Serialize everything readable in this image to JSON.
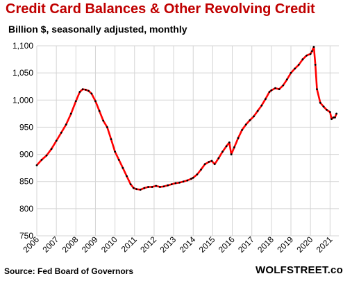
{
  "chart_data": {
    "type": "line",
    "title": "Credit Card Balances & Other Revolving Credit",
    "subtitle": "Billion $, seasonally adjusted, monthly",
    "source": "Source: Fed Board of Governors",
    "brand": "WOLFSTREET.com",
    "xlabel": "",
    "ylabel": "",
    "xlim": [
      2006,
      2021.45
    ],
    "ylim": [
      750,
      1100
    ],
    "x_ticks": [
      "2006",
      "2007",
      "2008",
      "2009",
      "2010",
      "2011",
      "2012",
      "2013",
      "2014",
      "2015",
      "2016",
      "2017",
      "2018",
      "2019",
      "2020",
      "2021"
    ],
    "y_ticks": [
      "750",
      "800",
      "850",
      "900",
      "950",
      "1,000",
      "1,050",
      "1,100"
    ],
    "grid": true,
    "legend": "none",
    "line_color": "#ff0000",
    "marker_color": "#000000",
    "series": [
      {
        "x": [
          2006.0,
          2006.25,
          2006.5,
          2006.75,
          2007.0,
          2007.25,
          2007.5,
          2007.75,
          2008.0,
          2008.2,
          2008.35,
          2008.5,
          2008.65,
          2008.8,
          2009.0,
          2009.2,
          2009.4,
          2009.6,
          2009.8,
          2010.0,
          2010.2,
          2010.4,
          2010.6,
          2010.8,
          2010.95,
          2011.1,
          2011.3,
          2011.5,
          2011.7,
          2011.9,
          2012.1,
          2012.3,
          2012.5,
          2012.7,
          2012.9,
          2013.1,
          2013.3,
          2013.5,
          2013.7,
          2013.9,
          2014.0,
          2014.2,
          2014.4,
          2014.6,
          2014.8,
          2014.95,
          2015.1,
          2015.3,
          2015.5,
          2015.7,
          2015.85,
          2015.95,
          2016.1,
          2016.3,
          2016.5,
          2016.7,
          2016.9,
          2017.1,
          2017.3,
          2017.5,
          2017.7,
          2017.9,
          2018.0,
          2018.2,
          2018.4,
          2018.6,
          2018.8,
          2019.0,
          2019.2,
          2019.4,
          2019.6,
          2019.8,
          2020.0,
          2020.08,
          2020.17,
          2020.25,
          2020.33,
          2020.5,
          2020.67,
          2020.83,
          2021.0,
          2021.08,
          2021.17,
          2021.25,
          2021.33
        ],
        "values": [
          880,
          890,
          898,
          910,
          925,
          940,
          955,
          975,
          998,
          1015,
          1020,
          1019,
          1017,
          1012,
          998,
          980,
          962,
          950,
          928,
          905,
          890,
          875,
          860,
          845,
          838,
          836,
          835,
          838,
          840,
          840,
          842,
          840,
          841,
          843,
          845,
          847,
          848,
          850,
          852,
          855,
          857,
          863,
          872,
          882,
          886,
          888,
          882,
          893,
          905,
          915,
          922,
          900,
          913,
          930,
          945,
          955,
          963,
          970,
          980,
          990,
          1002,
          1015,
          1018,
          1022,
          1020,
          1027,
          1038,
          1050,
          1058,
          1065,
          1075,
          1082,
          1085,
          1090,
          1098,
          1065,
          1020,
          995,
          988,
          982,
          978,
          965,
          968,
          968,
          975
        ]
      }
    ]
  }
}
